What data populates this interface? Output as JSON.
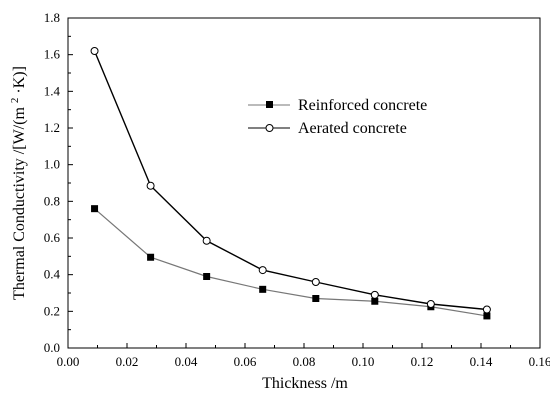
{
  "chart_data": {
    "type": "line",
    "title": "",
    "xlabel": "Thickness /m",
    "ylabel_parts": {
      "prefix": "Thermal Conductivity /[W/(m",
      "sup": "2",
      "suffix": "·K)]"
    },
    "xlim": [
      0.0,
      0.16
    ],
    "ylim": [
      0.0,
      1.8
    ],
    "x_ticks": [
      "0.00",
      "0.02",
      "0.04",
      "0.06",
      "0.08",
      "0.10",
      "0.12",
      "0.14",
      "0.16"
    ],
    "y_ticks": [
      "0.0",
      "0.2",
      "0.4",
      "0.6",
      "0.8",
      "1.0",
      "1.2",
      "1.4",
      "1.6",
      "1.8"
    ],
    "grid": false,
    "legend_position": "center-right",
    "series": [
      {
        "name": "Reinforced concrete",
        "marker": "filled-square",
        "color": "#777777",
        "x": [
          0.009,
          0.028,
          0.047,
          0.066,
          0.084,
          0.104,
          0.123,
          0.142
        ],
        "y": [
          0.76,
          0.495,
          0.39,
          0.32,
          0.27,
          0.255,
          0.225,
          0.175
        ]
      },
      {
        "name": "Aerated concrete",
        "marker": "open-circle",
        "color": "#000000",
        "x": [
          0.009,
          0.028,
          0.047,
          0.066,
          0.084,
          0.104,
          0.123,
          0.142
        ],
        "y": [
          1.62,
          0.885,
          0.585,
          0.425,
          0.36,
          0.29,
          0.24,
          0.21
        ]
      }
    ]
  }
}
